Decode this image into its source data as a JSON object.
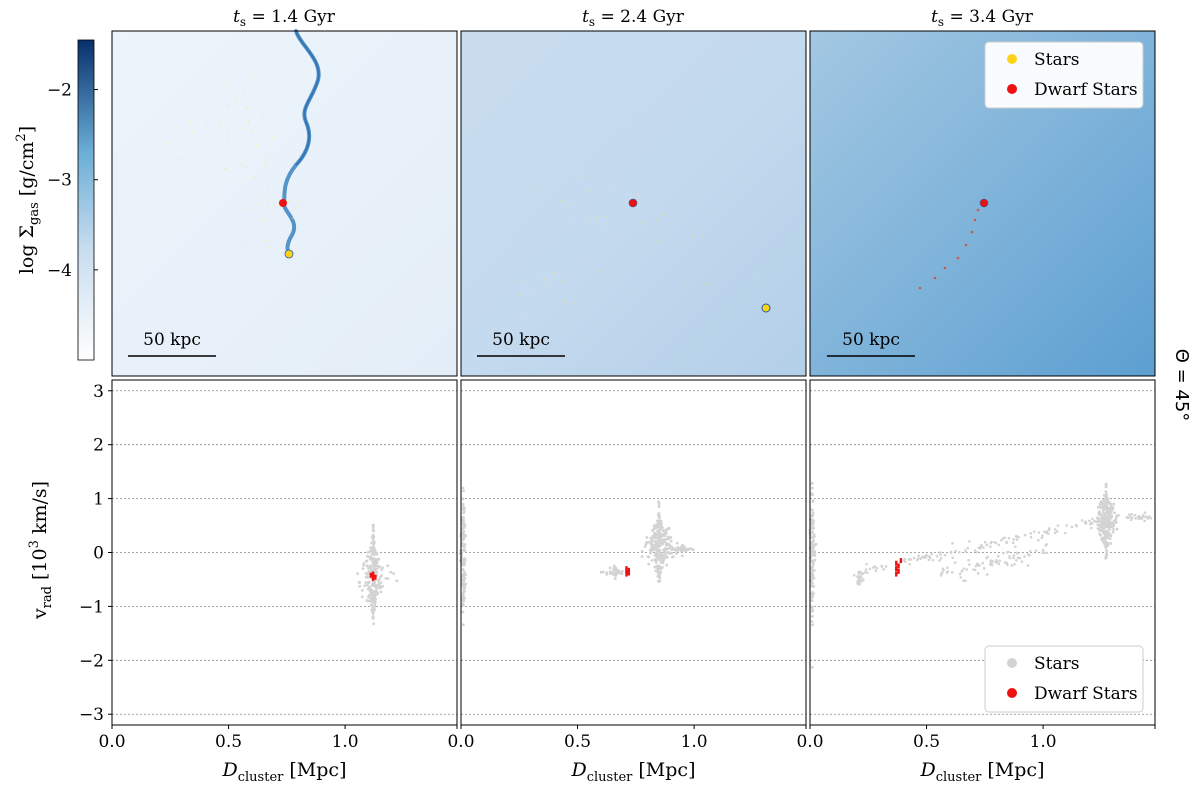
{
  "figure": {
    "side_label": "Θ = 45°",
    "colorbar": {
      "label_prefix": "log Σ",
      "label_sub": "gas",
      "label_suffix": " [g/cm",
      "label_sup": "2",
      "label_end": "]",
      "ticks": [
        "−2",
        "−3",
        "−4"
      ],
      "tick_values": [
        -2,
        -3,
        -4
      ],
      "range": [
        -5.0,
        -1.45
      ]
    },
    "scale_bar_label": "50 kpc",
    "top_legend": {
      "stars": "Stars",
      "dwarf_stars": "Dwarf Stars"
    },
    "bottom_legend": {
      "stars": "Stars",
      "dwarf_stars": "Dwarf Stars"
    },
    "bottom_ylabel": {
      "prefix": "v",
      "sub": "rad",
      "mid": " [10",
      "sup": "3",
      "end": " km/s]"
    },
    "bottom_xlabel": {
      "prefix": "D",
      "sub": "cluster",
      "end": " [Mpc]"
    },
    "bottom_yticks": [
      "3",
      "2",
      "1",
      "0",
      "−1",
      "−2",
      "−3"
    ],
    "bottom_xticks": [
      "0.0",
      "0.5",
      "1.0"
    ],
    "colors": {
      "stars_top": "#ffd21a",
      "dwarf": "#ee1111",
      "stars_bottom": "#d3d3d3",
      "gas_dark": "#2160a8"
    }
  },
  "chart_data": [
    {
      "type": "image",
      "panel": 1,
      "title_prefix": "t",
      "title_sub": "s",
      "title_value": " = 1.4 Gyr",
      "t_s_Gyr": 1.4,
      "description": "gas surface density map"
    },
    {
      "type": "image",
      "panel": 2,
      "title_prefix": "t",
      "title_sub": "s",
      "title_value": " = 2.4 Gyr",
      "t_s_Gyr": 2.4
    },
    {
      "type": "image",
      "panel": 3,
      "title_prefix": "t",
      "title_sub": "s",
      "title_value": " = 3.4 Gyr",
      "t_s_Gyr": 3.4
    },
    {
      "type": "scatter",
      "panel": 1,
      "xlabel": "D_cluster [Mpc]",
      "ylabel": "v_rad [10^3 km/s]",
      "xlim": [
        0.0,
        1.48
      ],
      "ylim": [
        -3.2,
        3.2
      ],
      "grid_y": [
        -3,
        -2,
        -1,
        0,
        1,
        2,
        3
      ],
      "series": [
        {
          "name": "Stars",
          "clumps": [
            {
              "x": 1.12,
              "y": -0.45,
              "dx": 0.06,
              "dy": 0.9,
              "n": 220
            }
          ]
        },
        {
          "name": "Dwarf Stars",
          "points": [
            [
              1.12,
              -0.4
            ],
            [
              1.12,
              -0.44
            ],
            [
              1.12,
              -0.48
            ],
            [
              1.11,
              -0.42
            ],
            [
              1.13,
              -0.46
            ]
          ]
        }
      ]
    },
    {
      "type": "scatter",
      "panel": 2,
      "xlabel": "D_cluster [Mpc]",
      "ylabel": "v_rad [10^3 km/s]",
      "xlim": [
        0.0,
        1.48
      ],
      "ylim": [
        -3.2,
        3.2
      ],
      "grid_y": [
        -3,
        -2,
        -1,
        0,
        1,
        2,
        3
      ],
      "series": [
        {
          "name": "Stars",
          "clumps": [
            {
              "x": 0.85,
              "y": 0.1,
              "dx": 0.07,
              "dy": 0.75,
              "n": 260
            },
            {
              "x": 0.01,
              "y": 0.0,
              "dx": 0.015,
              "dy": 1.6,
              "n": 120
            },
            {
              "x": 0.66,
              "y": -0.35,
              "dx": 0.05,
              "dy": 0.12,
              "n": 40
            },
            {
              "x": 0.95,
              "y": 0.05,
              "dx": 0.05,
              "dy": 0.1,
              "n": 30
            }
          ]
        },
        {
          "name": "Dwarf Stars",
          "points": [
            [
              0.71,
              -0.3
            ],
            [
              0.71,
              -0.35
            ],
            [
              0.71,
              -0.4
            ],
            [
              0.72,
              -0.33
            ],
            [
              0.72,
              -0.38
            ]
          ]
        }
      ]
    },
    {
      "type": "scatter",
      "panel": 3,
      "xlabel": "D_cluster [Mpc]",
      "ylabel": "v_rad [10^3 km/s]",
      "xlim": [
        0.0,
        1.48
      ],
      "ylim": [
        -3.2,
        3.2
      ],
      "grid_y": [
        -3,
        -2,
        -1,
        0,
        1,
        2,
        3
      ],
      "series": [
        {
          "name": "Stars",
          "clumps": [
            {
              "x": 1.27,
              "y": 0.6,
              "dx": 0.06,
              "dy": 0.7,
              "n": 240
            },
            {
              "x": 0.01,
              "y": 0.0,
              "dx": 0.015,
              "dy": 1.6,
              "n": 120
            },
            {
              "x": 0.21,
              "y": -0.5,
              "dx": 0.02,
              "dy": 0.15,
              "n": 25
            }
          ],
          "streams": [
            {
              "from": [
                0.18,
                -0.4
              ],
              "to": [
                1.25,
                0.6
              ],
              "n": 120,
              "spread": 0.05
            },
            {
              "from": [
                0.55,
                -0.45
              ],
              "to": [
                1.05,
                0.1
              ],
              "n": 80,
              "spread": 0.08
            },
            {
              "from": [
                1.35,
                0.65
              ],
              "to": [
                1.47,
                0.65
              ],
              "n": 25,
              "spread": 0.03
            }
          ]
        },
        {
          "name": "Dwarf Stars",
          "points": [
            [
              0.37,
              -0.2
            ],
            [
              0.37,
              -0.3
            ],
            [
              0.37,
              -0.4
            ],
            [
              0.38,
              -0.25
            ],
            [
              0.38,
              -0.35
            ],
            [
              0.39,
              -0.15
            ]
          ]
        }
      ]
    }
  ]
}
